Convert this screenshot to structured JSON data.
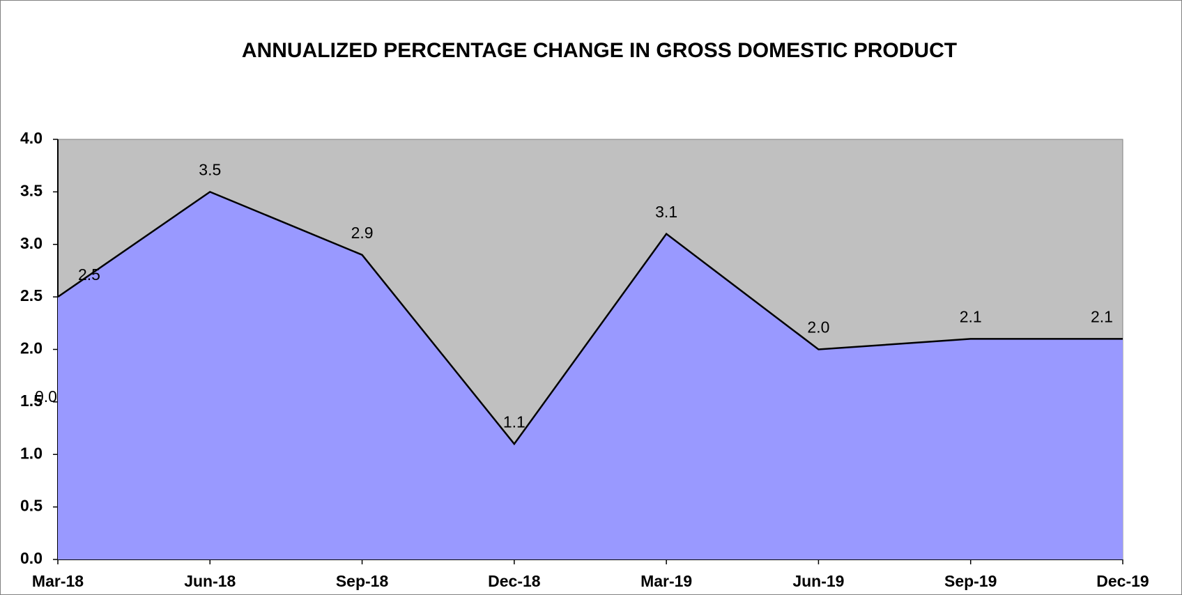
{
  "chart_data": {
    "type": "area",
    "title": "ANNUALIZED PERCENTAGE CHANGE IN GROSS DOMESTIC PRODUCT",
    "categories": [
      "Mar-18",
      "Jun-18",
      "Sep-18",
      "Dec-18",
      "Mar-19",
      "Jun-19",
      "Sep-19",
      "Dec-19"
    ],
    "values": [
      2.5,
      3.5,
      2.9,
      1.1,
      3.1,
      2.0,
      2.1,
      2.1
    ],
    "value_labels": [
      "2.5",
      "3.5",
      "2.9",
      "1.1",
      "3.1",
      "2.0",
      "2.1",
      "2.1"
    ],
    "color": "#9999ff",
    "line_color": "#000000",
    "plot_background": "#c0c0c0",
    "ylim": [
      0,
      4
    ],
    "yticks": [
      {
        "value": 0,
        "label": "0.0"
      },
      {
        "value": 0.5,
        "label": "0.5"
      },
      {
        "value": 1,
        "label": "1.0"
      },
      {
        "value": 1.5,
        "label": "1.5"
      },
      {
        "value": 2,
        "label": "2.0"
      },
      {
        "value": 2.5,
        "label": "2.5"
      },
      {
        "value": 3,
        "label": "3.0"
      },
      {
        "value": 3.5,
        "label": "3.5"
      },
      {
        "value": 4,
        "label": "4.0"
      }
    ],
    "grid": false,
    "annotations": [
      "0.0"
    ]
  }
}
